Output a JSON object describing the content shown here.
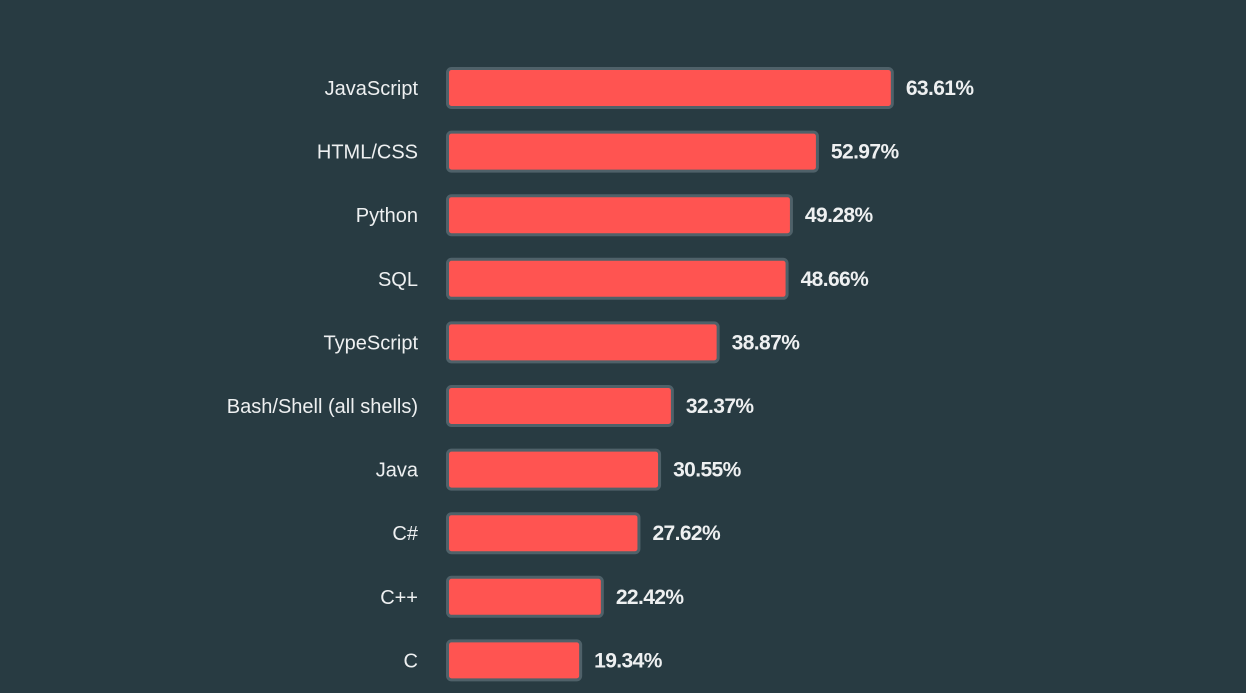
{
  "colors": {
    "background": "#283b42",
    "bar_fill": "#ff5451",
    "bar_outline": "#4f6169",
    "text": "#eef0f1"
  },
  "chart_data": {
    "type": "bar",
    "orientation": "horizontal",
    "categories": [
      "JavaScript",
      "HTML/CSS",
      "Python",
      "SQL",
      "TypeScript",
      "Bash/Shell (all shells)",
      "Java",
      "C#",
      "C++",
      "C"
    ],
    "values": [
      63.61,
      52.97,
      49.28,
      48.66,
      38.87,
      32.37,
      30.55,
      27.62,
      22.42,
      19.34
    ],
    "value_labels": [
      "63.61%",
      "52.97%",
      "49.28%",
      "48.66%",
      "38.87%",
      "32.37%",
      "30.55%",
      "27.62%",
      "22.42%",
      "19.34%"
    ],
    "unit": "%",
    "xlim": [
      0,
      100
    ],
    "grid": false,
    "legend": "none"
  }
}
